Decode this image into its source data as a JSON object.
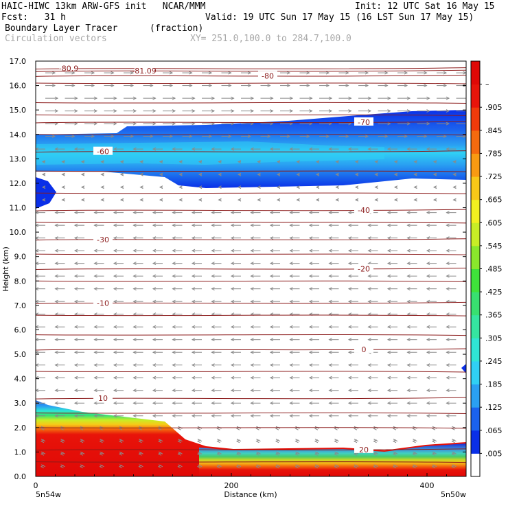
{
  "header": {
    "line1_left": "HAIC-HIWC 13km ARW-GFS init   NCAR/MMM",
    "line1_right": "Init: 12 UTC Sat 16 May 15",
    "line2_left": "Fcst:   31 h",
    "line2_right": "Valid: 19 UTC Sun 17 May 15 (16 LST Sun 17 May 15)",
    "line3_left": "Boundary Layer Tracer",
    "line3_mid": "(fraction)",
    "line4_left": "Circulation vectors",
    "line4_mid": "XY= 251.0,100.0 to 284.7,100.0"
  },
  "chart_data": {
    "type": "heatmap",
    "title": "Boundary Layer Tracer",
    "units": "(fraction)",
    "xlabel": "Distance (km)",
    "ylabel": "Height (km)",
    "xlim": [
      0,
      440
    ],
    "ylim": [
      0,
      17
    ],
    "x_ticks": [
      0,
      200,
      400
    ],
    "y_ticks": [
      "0.0",
      "1.0",
      "2.0",
      "3.0",
      "4.0",
      "5.0",
      "6.0",
      "7.0",
      "8.0",
      "9.0",
      "10.0",
      "11.0",
      "12.0",
      "13.0",
      "14.0",
      "15.0",
      "16.0",
      "17.0"
    ],
    "x_endpoints": {
      "left": "5n54w",
      "right": "5n50w"
    },
    "colorbar": {
      "labels": [
        ".005",
        ".065",
        ".125",
        ".185",
        ".245",
        ".305",
        ".365",
        ".425",
        ".485",
        ".545",
        ".605",
        ".665",
        ".725",
        ".785",
        ".845",
        ".905",
        "–"
      ],
      "colors": [
        "#ffffff",
        "#0a2fe8",
        "#1b62ee",
        "#2aa0f2",
        "#30d0f4",
        "#2fe6d4",
        "#35e6a0",
        "#38e070",
        "#3fe23a",
        "#8ae82c",
        "#c8ee26",
        "#f2f020",
        "#f8c818",
        "#f89a12",
        "#f46a0e",
        "#f03a0a",
        "#e8140a",
        "#e00806"
      ]
    },
    "contours": [
      {
        "label": "-80.9",
        "y": 16.7
      },
      {
        "label": "-81.09",
        "y": 16.6
      },
      {
        "label": "-80",
        "y": 16.4
      },
      {
        "label": "-70",
        "y": 14.5
      },
      {
        "label": "-60",
        "y": 13.3
      },
      {
        "label": "-40",
        "y": 10.9
      },
      {
        "label": "-30",
        "y": 9.7
      },
      {
        "label": "-20",
        "y": 8.5
      },
      {
        "label": "-10",
        "y": 7.1
      },
      {
        "label": "0",
        "y": 5.2
      },
      {
        "label": "10",
        "y": 3.2
      },
      {
        "label": "20",
        "y": 1.1
      }
    ]
  }
}
